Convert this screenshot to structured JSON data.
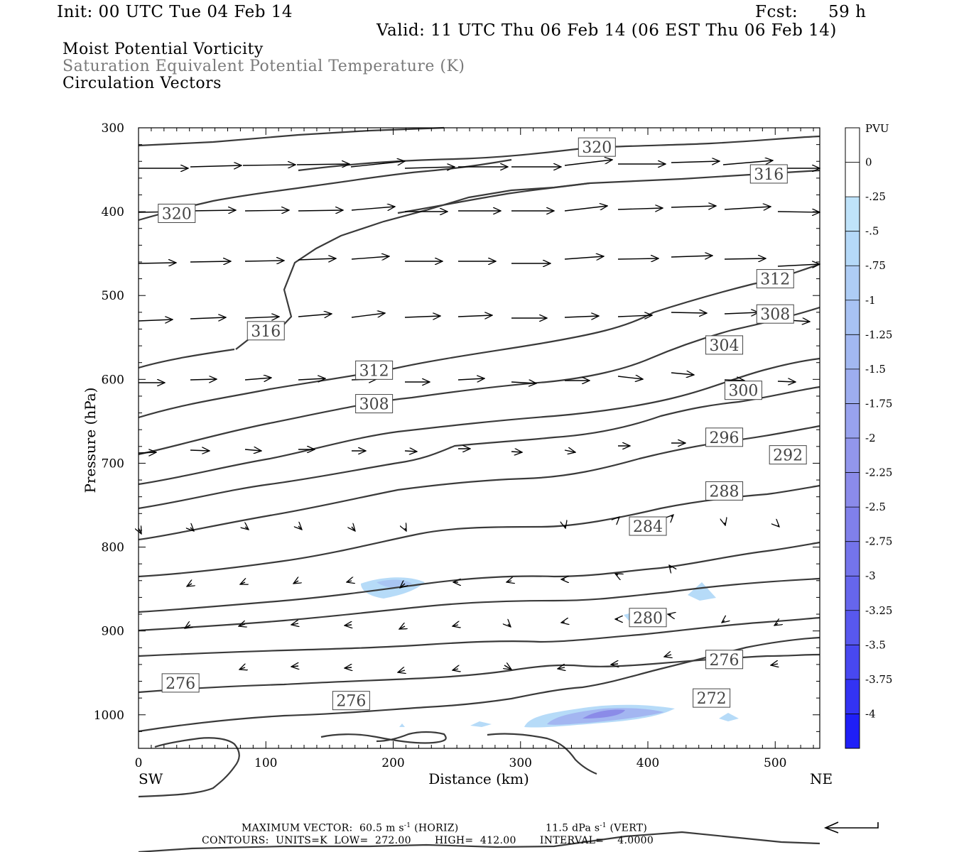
{
  "header": {
    "init": "Init: 00 UTC Tue 04 Feb 14",
    "fcst_label": "Fcst:",
    "fcst_value": "59 h",
    "valid": "Valid: 11 UTC Thu 06 Feb 14 (06 EST Thu 06 Feb 14)",
    "field1": "Moist Potential Vorticity",
    "field2": "Saturation Equivalent Potential Temperature (K)",
    "field3": "Circulation Vectors"
  },
  "footer": {
    "max_vector_prefix": "MAXIMUM VECTOR:  60.5 m s",
    "max_vector_horiz": "(HORIZ)",
    "max_vector_vert_prefix": "11.5 dPa s",
    "max_vector_vert": "(VERT)",
    "superscript": "-1",
    "contours": "CONTOURS:  UNITS=K  LOW=  272.00       HIGH=  412.00       INTERVAL=    4.0000"
  },
  "colors": {
    "contour": "#3a3a3a",
    "pv_fill_light": "#a8d4f7",
    "pv_fill_mid": "#b8b8ef",
    "pv_fill_dark": "#8c8ce6"
  },
  "chart_data": {
    "type": "cross-section",
    "xlabel": "Distance (km)",
    "ylabel": "Pressure (hPa)",
    "x_left_label": "SW",
    "x_right_label": "NE",
    "xlim": [
      0,
      535
    ],
    "ylim": [
      1040,
      300
    ],
    "x_ticks": [
      "0",
      "100",
      "200",
      "300",
      "400",
      "500"
    ],
    "y_ticks": [
      "300",
      "400",
      "500",
      "600",
      "700",
      "800",
      "900",
      "1000"
    ],
    "colorbar": {
      "title": "PVU",
      "labels": [
        "0",
        "-.25",
        "-.5",
        "-.75",
        "-1",
        "-1.25",
        "-1.5",
        "-1.75",
        "-2",
        "-2.25",
        "-2.5",
        "-2.75",
        "-3",
        "-3.25",
        "-3.5",
        "-3.75",
        "-4"
      ],
      "colors": [
        "#ffffff",
        "#ffffff",
        "#bfe3fa",
        "#b5d9f8",
        "#aecdf5",
        "#a8c2f3",
        "#a2b8f1",
        "#9dadef",
        "#98a2ee",
        "#9296ec",
        "#8b8bea",
        "#8080ea",
        "#7474eb",
        "#6666ec",
        "#5858ee",
        "#4848f0",
        "#3333f3",
        "#1f1ff7",
        "#0a0afc"
      ]
    },
    "contour_labels": [
      {
        "text": "320",
        "x": 360,
        "p": 323
      },
      {
        "text": "316",
        "x": 495,
        "p": 355
      },
      {
        "text": "320",
        "x": 30,
        "p": 402
      },
      {
        "text": "312",
        "x": 500,
        "p": 480
      },
      {
        "text": "308",
        "x": 500,
        "p": 522
      },
      {
        "text": "316",
        "x": 100,
        "p": 542
      },
      {
        "text": "304",
        "x": 460,
        "p": 559
      },
      {
        "text": "312",
        "x": 185,
        "p": 589
      },
      {
        "text": "300",
        "x": 475,
        "p": 613
      },
      {
        "text": "308",
        "x": 185,
        "p": 629
      },
      {
        "text": "296",
        "x": 460,
        "p": 669
      },
      {
        "text": "292",
        "x": 510,
        "p": 690
      },
      {
        "text": "288",
        "x": 460,
        "p": 733
      },
      {
        "text": "284",
        "x": 400,
        "p": 775
      },
      {
        "text": "280",
        "x": 400,
        "p": 884
      },
      {
        "text": "276",
        "x": 460,
        "p": 934
      },
      {
        "text": "276",
        "x": 33,
        "p": 962
      },
      {
        "text": "272",
        "x": 450,
        "p": 980
      },
      {
        "text": "276",
        "x": 167,
        "p": 983
      }
    ]
  }
}
